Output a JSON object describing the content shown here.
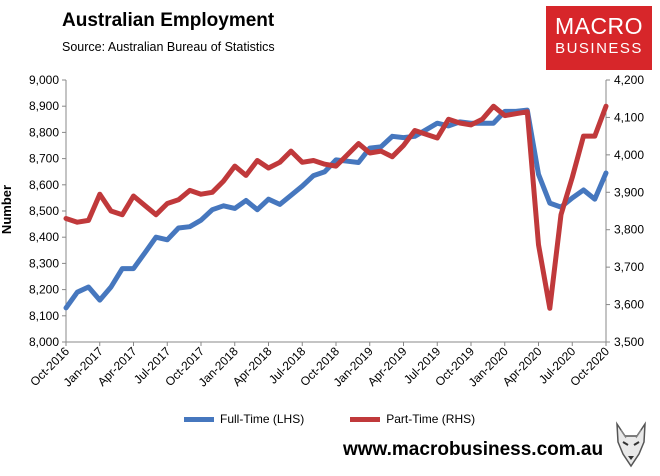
{
  "header": {
    "title": "Australian Employment",
    "source": "Source: Australian Bureau of Statistics",
    "logo_line1": "MACRO",
    "logo_line2": "BUSINESS"
  },
  "footer": {
    "url": "www.macrobusiness.com.au"
  },
  "colors": {
    "full_time": "#4677be",
    "part_time": "#c0393b",
    "logo_bg": "#d7262a"
  },
  "chart_data": {
    "type": "line",
    "title": "Australian Employment",
    "ylabel": "Number",
    "ylim_left": [
      8000,
      9000
    ],
    "ylim_right": [
      3500,
      4200
    ],
    "yticks_left": [
      "8,000",
      "8,100",
      "8,200",
      "8,300",
      "8,400",
      "8,500",
      "8,600",
      "8,700",
      "8,800",
      "8,900",
      "9,000"
    ],
    "yticks_right": [
      "3,500",
      "3,600",
      "3,700",
      "3,800",
      "3,900",
      "4,000",
      "4,100",
      "4,200"
    ],
    "x_tick_labels": [
      "Oct-2016",
      "Jan-2017",
      "Apr-2017",
      "Jul-2017",
      "Oct-2017",
      "Jan-2018",
      "Apr-2018",
      "Jul-2018",
      "Oct-2018",
      "Jan-2019",
      "Apr-2019",
      "Jul-2019",
      "Oct-2019",
      "Jan-2020",
      "Apr-2020",
      "Jul-2020",
      "Oct-2020"
    ],
    "x": [
      "Oct-2016",
      "Nov-2016",
      "Dec-2016",
      "Jan-2017",
      "Feb-2017",
      "Mar-2017",
      "Apr-2017",
      "May-2017",
      "Jun-2017",
      "Jul-2017",
      "Aug-2017",
      "Sep-2017",
      "Oct-2017",
      "Nov-2017",
      "Dec-2017",
      "Jan-2018",
      "Feb-2018",
      "Mar-2018",
      "Apr-2018",
      "May-2018",
      "Jun-2018",
      "Jul-2018",
      "Aug-2018",
      "Sep-2018",
      "Oct-2018",
      "Nov-2018",
      "Dec-2018",
      "Jan-2019",
      "Feb-2019",
      "Mar-2019",
      "Apr-2019",
      "May-2019",
      "Jun-2019",
      "Jul-2019",
      "Aug-2019",
      "Sep-2019",
      "Oct-2019",
      "Nov-2019",
      "Dec-2019",
      "Jan-2020",
      "Feb-2020",
      "Mar-2020",
      "Apr-2020",
      "May-2020",
      "Jun-2020",
      "Jul-2020",
      "Aug-2020",
      "Sep-2020",
      "Oct-2020"
    ],
    "series": [
      {
        "name": "Full-Time (LHS)",
        "axis": "left",
        "values": [
          8130,
          8190,
          8210,
          8160,
          8210,
          8280,
          8280,
          8340,
          8400,
          8390,
          8435,
          8440,
          8465,
          8505,
          8520,
          8510,
          8540,
          8505,
          8545,
          8525,
          8560,
          8595,
          8635,
          8650,
          8695,
          8690,
          8685,
          8740,
          8745,
          8785,
          8780,
          8785,
          8810,
          8835,
          8825,
          8840,
          8835,
          8835,
          8835,
          8880,
          8880,
          8885,
          8640,
          8530,
          8515,
          8550,
          8580,
          8545,
          8645
        ]
      },
      {
        "name": "Part-Time (RHS)",
        "axis": "right",
        "values": [
          3830,
          3820,
          3825,
          3895,
          3850,
          3840,
          3890,
          3865,
          3840,
          3870,
          3880,
          3905,
          3895,
          3900,
          3930,
          3970,
          3945,
          3985,
          3965,
          3980,
          4010,
          3980,
          3985,
          3975,
          3970,
          4000,
          4030,
          4005,
          4010,
          3995,
          4025,
          4065,
          4055,
          4045,
          4095,
          4085,
          4080,
          4095,
          4130,
          4105,
          4110,
          4115,
          3760,
          3590,
          3840,
          3940,
          4050,
          4050,
          4130
        ]
      }
    ],
    "legend_position": "bottom"
  }
}
